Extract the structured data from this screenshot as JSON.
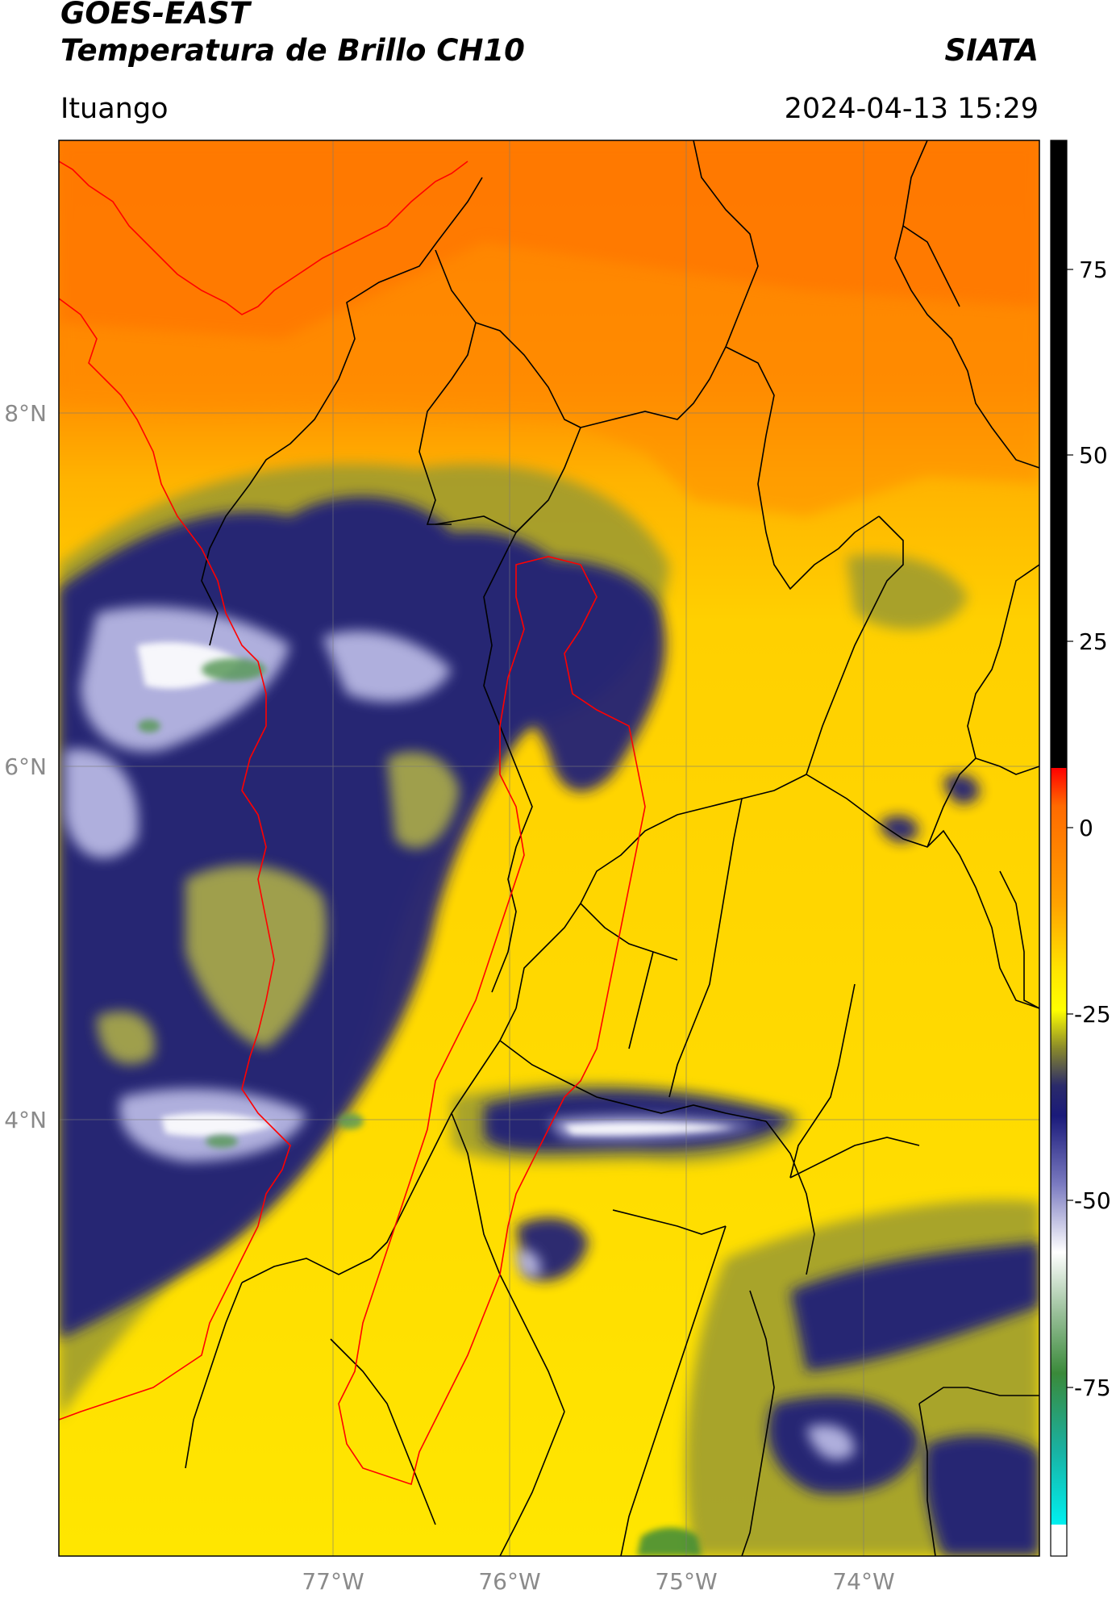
{
  "header": {
    "satellite": "GOES-EAST",
    "product": "Temperatura de Brillo CH10",
    "organization": "SIATA",
    "location": "Ituango",
    "timestamp": "2024-04-13 15:29"
  },
  "map": {
    "lat_labels": [
      "8°N",
      "6°N",
      "4°N"
    ],
    "lon_labels": [
      "77°W",
      "76°W",
      "75°W",
      "74°W"
    ]
  },
  "colorbar": {
    "ticks": [
      "75",
      "50",
      "25",
      "0",
      "-25",
      "-50",
      "-75"
    ],
    "colors": {
      "black": "#000000",
      "red": "#ff0000",
      "orange": "#ff8800",
      "yellow": "#ffff00",
      "olive": "#8a8a2a",
      "navy": "#1a1a7a",
      "white": "#ffffff",
      "green": "#3a8a3a",
      "cyan": "#00e5e5"
    }
  }
}
